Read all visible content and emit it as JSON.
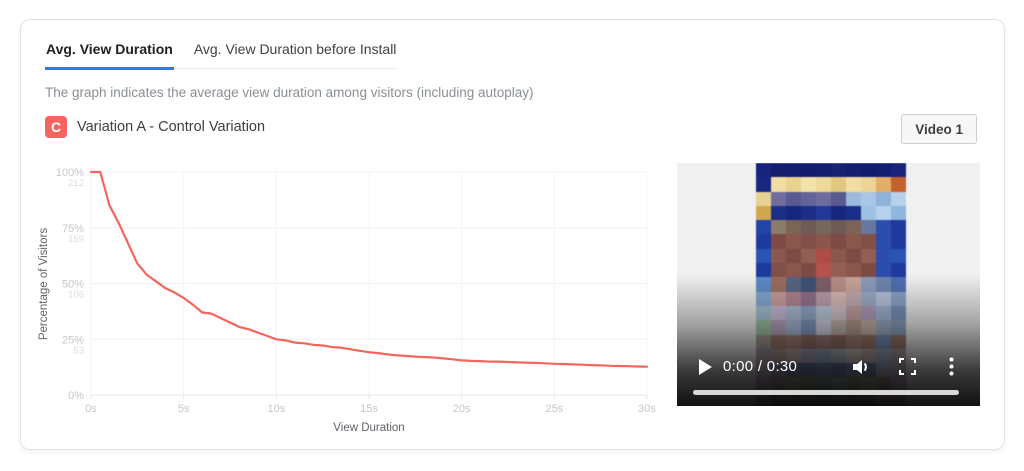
{
  "tabs": [
    {
      "label": "Avg. View Duration",
      "active": true
    },
    {
      "label": "Avg. View Duration before Install",
      "active": false
    }
  ],
  "description": "The graph indicates the average view duration among visitors (including autoplay)",
  "variation": {
    "badge": "C",
    "label": "Variation A - Control Variation"
  },
  "video_button_label": "Video 1",
  "colors": {
    "accent_blue": "#2680eb",
    "line_red": "#f5655c",
    "badge_red": "#f4655f",
    "grid": "#f0f0f0",
    "axis_tick": "#c4c6c8",
    "axis_tick_secondary": "#dcdddf",
    "axis_title": "#5f6368"
  },
  "chart_data": {
    "type": "line",
    "xlabel": "View Duration",
    "ylabel": "Percentage of Visitors",
    "xlim": [
      0,
      30
    ],
    "ylim": [
      0,
      100
    ],
    "grid": true,
    "x_ticks": [
      {
        "value": 0,
        "label": "0s"
      },
      {
        "value": 5,
        "label": "5s"
      },
      {
        "value": 10,
        "label": "10s"
      },
      {
        "value": 15,
        "label": "15s"
      },
      {
        "value": 20,
        "label": "20s"
      },
      {
        "value": 25,
        "label": "25s"
      },
      {
        "value": 30,
        "label": "30s"
      }
    ],
    "y_ticks": [
      {
        "value": 100,
        "label": "100%",
        "count": "212"
      },
      {
        "value": 75,
        "label": "75%",
        "count": "159"
      },
      {
        "value": 50,
        "label": "50%",
        "count": "106"
      },
      {
        "value": 25,
        "label": "25%",
        "count": "53"
      },
      {
        "value": 0,
        "label": "0%",
        "count": ""
      }
    ],
    "series": [
      {
        "name": "Variation A - Control Variation",
        "color": "#f5655c",
        "points": [
          [
            0,
            100
          ],
          [
            0.5,
            100
          ],
          [
            1,
            85
          ],
          [
            1.5,
            77
          ],
          [
            2,
            68
          ],
          [
            2.5,
            59
          ],
          [
            3,
            54
          ],
          [
            3.5,
            51
          ],
          [
            4,
            48
          ],
          [
            4.5,
            46
          ],
          [
            5,
            43.5
          ],
          [
            5.5,
            40.5
          ],
          [
            6,
            37
          ],
          [
            6.5,
            36.5
          ],
          [
            7,
            34.5
          ],
          [
            7.5,
            32.5
          ],
          [
            8,
            30.5
          ],
          [
            8.5,
            29.5
          ],
          [
            9,
            28
          ],
          [
            9.5,
            26.5
          ],
          [
            10,
            25
          ],
          [
            10.5,
            24.5
          ],
          [
            11,
            23.5
          ],
          [
            11.5,
            23.2
          ],
          [
            12,
            22.5
          ],
          [
            12.5,
            22.2
          ],
          [
            13,
            21.5
          ],
          [
            13.5,
            21.2
          ],
          [
            14,
            20.5
          ],
          [
            14.5,
            19.8
          ],
          [
            15,
            19.2
          ],
          [
            15.5,
            18.8
          ],
          [
            16,
            18.2
          ],
          [
            16.5,
            17.8
          ],
          [
            17,
            17.5
          ],
          [
            17.5,
            17.2
          ],
          [
            18,
            17
          ],
          [
            18.5,
            16.8
          ],
          [
            19,
            16.4
          ],
          [
            19.5,
            16
          ],
          [
            20,
            15.5
          ],
          [
            20.5,
            15.3
          ],
          [
            21,
            15.2
          ],
          [
            21.5,
            15
          ],
          [
            22,
            15
          ],
          [
            22.5,
            14.8
          ],
          [
            23,
            14.6
          ],
          [
            23.5,
            14.5
          ],
          [
            24,
            14.4
          ],
          [
            24.5,
            14.2
          ],
          [
            25,
            14
          ],
          [
            25.5,
            13.9
          ],
          [
            26,
            13.7
          ],
          [
            26.5,
            13.6
          ],
          [
            27,
            13.4
          ],
          [
            27.5,
            13.3
          ],
          [
            28,
            13.1
          ],
          [
            28.5,
            13
          ],
          [
            29,
            12.9
          ],
          [
            29.5,
            12.8
          ],
          [
            30,
            12.7
          ]
        ]
      }
    ]
  },
  "video_player": {
    "time_text": "0:00 / 0:30",
    "icons": {
      "play": "triangle-right",
      "volume": "speaker-wave",
      "fullscreen": "corner-brackets",
      "menu": "vertical-dots"
    },
    "thumbnail_mosaic": {
      "rows": [
        [
          "#17227a",
          "#141d6e",
          "#141d6e",
          "#131c6c",
          "#141d6e",
          "#18226f",
          "#141d6e",
          "#131c6c",
          "#141d6e",
          "#17227a"
        ],
        [
          "#1a2680",
          "#f0dda4",
          "#e9d18e",
          "#f3e2ac",
          "#eed89a",
          "#e3c77f",
          "#f0dda4",
          "#ecd494",
          "#e2ad66",
          "#c5602f"
        ],
        [
          "#e7d294",
          "#6e6d9e",
          "#585a90",
          "#62639a",
          "#6e6d9e",
          "#585a90",
          "#9db9dc",
          "#a9c7e4",
          "#8fb2d8",
          "#b7d1ea"
        ],
        [
          "#d0a94f",
          "#1c2f88",
          "#16277e",
          "#1c2f88",
          "#22379a",
          "#16277e",
          "#1c2f88",
          "#9cc2e2",
          "#b5d2ec",
          "#8fb6dc"
        ],
        [
          "#2343a6",
          "#8c7c6c",
          "#7b6355",
          "#6d5c55",
          "#75665e",
          "#6d5c55",
          "#7b6355",
          "#68779f",
          "#2c4cae",
          "#1f3a9c"
        ],
        [
          "#1e3a9e",
          "#7d4b43",
          "#8b564b",
          "#815048",
          "#8b564b",
          "#7d4b43",
          "#8b564b",
          "#815048",
          "#2c4cae",
          "#1f3a9c"
        ],
        [
          "#2854b4",
          "#8b564b",
          "#7d4b43",
          "#935f54",
          "#ad4b45",
          "#8b564b",
          "#7d4b43",
          "#935f54",
          "#2c4cae",
          "#2854b4"
        ],
        [
          "#1e3a9e",
          "#815048",
          "#8b564b",
          "#7d4b43",
          "#b5524a",
          "#935f54",
          "#8b564b",
          "#7d4b43",
          "#2c4cae",
          "#1f3a9c"
        ],
        [
          "#5a88c6",
          "#9a6a5c",
          "#54627c",
          "#3c4e76",
          "#7c5c66",
          "#b88c86",
          "#c6a49c",
          "#8a9aba",
          "#6c84ae",
          "#4c6cb0"
        ],
        [
          "#7ea6d4",
          "#c89a98",
          "#b27e8a",
          "#8c6c86",
          "#ba9aaa",
          "#dabab6",
          "#c2aab2",
          "#9aaaca",
          "#b4c4de",
          "#88a2c8"
        ],
        [
          "#a0c2d8",
          "#cabada",
          "#aabada",
          "#8aa2ca",
          "#bacae2",
          "#d2c2ca",
          "#c29a9a",
          "#ae96ba",
          "#9ab2da",
          "#6a8aba"
        ],
        [
          "#8fc29a",
          "#b29aba",
          "#9ab2da",
          "#6a8aba",
          "#cad2e2",
          "#baaaa2",
          "#aa8a7a",
          "#c2aa9a",
          "#8aa2c2",
          "#7a92ba"
        ],
        [
          "#9a8a82",
          "#8c5c4e",
          "#98665c",
          "#7c4c44",
          "#8c5c56",
          "#7c4c44",
          "#98665c",
          "#8c5c4e",
          "#5a7ab2",
          "#8c5c4e"
        ],
        [
          "#8a7a8a",
          "#9c7c74",
          "#b29a90",
          "#8a8aaa",
          "#7a92ba",
          "#9aa2ba",
          "#c2b2aa",
          "#aa9a92",
          "#8a98b2",
          "#9a8a94"
        ],
        [
          "#a28a94",
          "#54628c",
          "#24408e",
          "#1c3488",
          "#2c4896",
          "#1c3488",
          "#34509e",
          "#24408e",
          "#8a98c2",
          "#9c8aa0"
        ],
        [
          "#9a6a9c",
          "#6a5a38",
          "#8a7444",
          "#6a5a38",
          "#3a6a62",
          "#478a7a",
          "#6a5a38",
          "#8a7444",
          "#6a5a38",
          "#a273a6"
        ],
        [
          "#b06aa0",
          "#4a3a52",
          "#2a2a3c",
          "#3a3448",
          "#2a2a3c",
          "#3a3448",
          "#2a2a3c",
          "#4a3a52",
          "#b06aa0",
          "#c27ab0"
        ]
      ]
    }
  }
}
